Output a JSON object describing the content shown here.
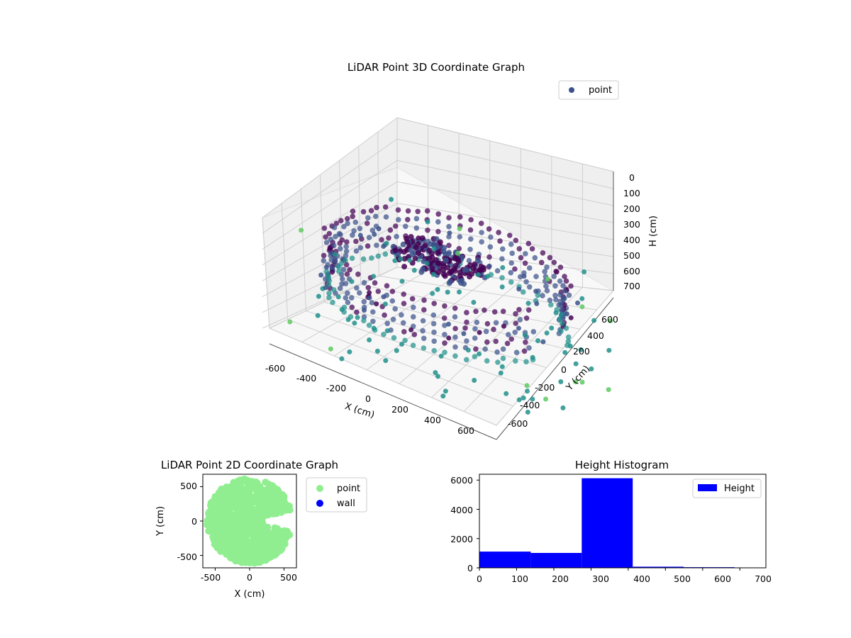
{
  "chart_data": [
    {
      "type": "scatter",
      "title": "LiDAR Point 3D Coordinate Graph",
      "xlabel": "X (cm)",
      "ylabel": "Y (cm)",
      "zlabel": "H (cm)",
      "x_ticks": [
        "-600",
        "-400",
        "-200",
        "0",
        "200",
        "400",
        "600"
      ],
      "y_ticks": [
        "-600",
        "-400",
        "-200",
        "0",
        "200",
        "400",
        "600"
      ],
      "z_ticks": [
        "0",
        "100",
        "200",
        "300",
        "400",
        "500",
        "600",
        "700"
      ],
      "xlim": [
        -650,
        650
      ],
      "ylim": [
        -650,
        650
      ],
      "zlim": [
        0,
        750
      ],
      "z_inverted": true,
      "legend": {
        "entries": [
          "point"
        ],
        "placement": "top-right"
      },
      "series": [
        {
          "name": "point",
          "shape": "ring",
          "radius": 600,
          "height_min": 0,
          "height_max": 700,
          "core_cluster": {
            "height": 320,
            "x_range": [
              -250,
              150
            ],
            "y_range": [
              -150,
              200
            ]
          }
        }
      ],
      "colors": {
        "low": "#440154",
        "mid": "#3b528b",
        "high": "#21918c",
        "top": "#5ec962"
      },
      "grid": true
    },
    {
      "type": "scatter",
      "title": "LiDAR Point 2D Coordinate Graph",
      "xlabel": "X (cm)",
      "ylabel": "Y (cm)",
      "x_ticks": [
        "-500",
        "0",
        "500"
      ],
      "y_ticks": [
        "-500",
        "0",
        "500"
      ],
      "xlim": [
        -680,
        680
      ],
      "ylim": [
        -680,
        680
      ],
      "legend": {
        "entries": [
          "point",
          "wall"
        ],
        "placement": "outside-right"
      },
      "series": [
        {
          "name": "point",
          "color": "#90ee90",
          "shape": "disc",
          "radius": 620,
          "gap_wedge_deg": [
            -15,
            15
          ]
        },
        {
          "name": "wall",
          "color": "#0000ff",
          "count": 0
        }
      ]
    },
    {
      "type": "bar",
      "title": "Height Histogram",
      "x_ticks": [
        "0",
        "100",
        "200",
        "300",
        "400",
        "500",
        "600",
        "700"
      ],
      "y_ticks": [
        "0",
        "2000",
        "4000",
        "6000"
      ],
      "xlim": [
        0,
        770
      ],
      "ylim": [
        0,
        6400
      ],
      "legend": {
        "entries": [
          "Height"
        ],
        "placement": "top-right"
      },
      "color": "#0000ff",
      "bins": [
        {
          "start": 0,
          "end": 138,
          "value": 1110
        },
        {
          "start": 138,
          "end": 275,
          "value": 1020
        },
        {
          "start": 275,
          "end": 412,
          "value": 6130
        },
        {
          "start": 412,
          "end": 549,
          "value": 80
        },
        {
          "start": 549,
          "end": 686,
          "value": 45
        }
      ]
    }
  ]
}
